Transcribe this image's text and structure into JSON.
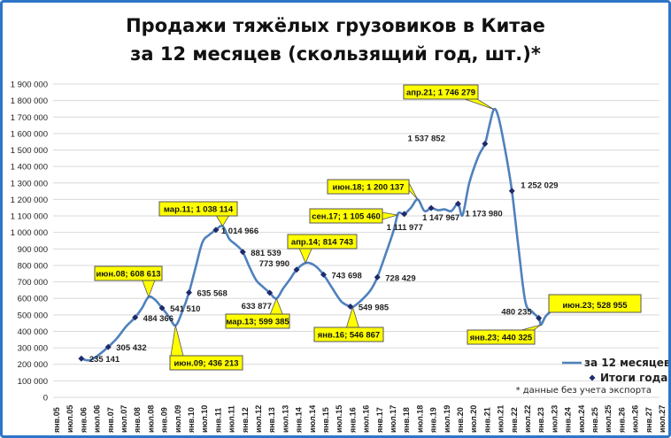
{
  "chart_data": {
    "type": "line",
    "title": [
      "Продажи тяжёлых грузовиков в Китае",
      "за 12 месяцев (скользящий год, шт.)*"
    ],
    "xlabel": "",
    "ylabel": "",
    "ylim": [
      0,
      1900000
    ],
    "yticks": [
      "0",
      "100 000",
      "200 000",
      "300 000",
      "400 000",
      "500 000",
      "600 000",
      "700 000",
      "800 000",
      "900 000",
      "1 000 000",
      "1 100 000",
      "1 200 000",
      "1 300 000",
      "1 400 000",
      "1 500 000",
      "1 600 000",
      "1 700 000",
      "1 800 000",
      "1 900 000"
    ],
    "xticks": [
      "янв.05",
      "июл.05",
      "янв.06",
      "июл.06",
      "янв.07",
      "июл.07",
      "янв.08",
      "июл.08",
      "янв.09",
      "июл.09",
      "янв.10",
      "июл.10",
      "янв.11",
      "июл.11",
      "янв.12",
      "июл.12",
      "янв.13",
      "июл.13",
      "янв.14",
      "июл.14",
      "янв.15",
      "июл.15",
      "янв.16",
      "июл.16",
      "янв.17",
      "июл.17",
      "янв.18",
      "июл.18",
      "янв.19",
      "июл.19",
      "янв.20",
      "июл.20",
      "янв.21",
      "июл.21",
      "янв.22",
      "июл.22",
      "янв.23",
      "июл.23",
      "янв.24",
      "июл.24",
      "янв.25",
      "июл.25",
      "янв.26",
      "июл.26",
      "янв.27",
      "июл.27"
    ],
    "grid": true,
    "legend_position": "bottom-right",
    "series": [
      {
        "name": "за 12 месяцев",
        "color": "#4f81bd",
        "points": [
          [
            "2005-12",
            235141
          ],
          [
            "2006-03",
            224000
          ],
          [
            "2006-06",
            240000
          ],
          [
            "2006-12",
            305432
          ],
          [
            "2007-04",
            360000
          ],
          [
            "2007-08",
            430000
          ],
          [
            "2007-12",
            484366
          ],
          [
            "2008-03",
            540000
          ],
          [
            "2008-06",
            608613
          ],
          [
            "2008-09",
            590000
          ],
          [
            "2008-12",
            541510
          ],
          [
            "2009-03",
            490000
          ],
          [
            "2009-06",
            436213
          ],
          [
            "2009-09",
            520000
          ],
          [
            "2009-12",
            635568
          ],
          [
            "2010-03",
            790000
          ],
          [
            "2010-06",
            940000
          ],
          [
            "2010-09",
            985000
          ],
          [
            "2010-12",
            1014966
          ],
          [
            "2011-03",
            1038114
          ],
          [
            "2011-06",
            960000
          ],
          [
            "2011-09",
            925000
          ],
          [
            "2011-12",
            881539
          ],
          [
            "2012-03",
            790000
          ],
          [
            "2012-06",
            710000
          ],
          [
            "2012-09",
            670000
          ],
          [
            "2012-12",
            633877
          ],
          [
            "2013-03",
            599385
          ],
          [
            "2013-06",
            660000
          ],
          [
            "2013-09",
            715000
          ],
          [
            "2013-12",
            773990
          ],
          [
            "2014-04",
            814743
          ],
          [
            "2014-08",
            800000
          ],
          [
            "2014-12",
            743698
          ],
          [
            "2015-04",
            660000
          ],
          [
            "2015-08",
            580000
          ],
          [
            "2015-12",
            549985
          ],
          [
            "2016-01",
            546867
          ],
          [
            "2016-05",
            590000
          ],
          [
            "2016-09",
            650000
          ],
          [
            "2016-12",
            728429
          ],
          [
            "2017-04",
            880000
          ],
          [
            "2017-07",
            1000000
          ],
          [
            "2017-09",
            1105460
          ],
          [
            "2017-10",
            1120000
          ],
          [
            "2017-12",
            1111977
          ],
          [
            "2018-03",
            1150000
          ],
          [
            "2018-06",
            1200137
          ],
          [
            "2018-09",
            1130000
          ],
          [
            "2018-12",
            1147967
          ],
          [
            "2019-03",
            1135000
          ],
          [
            "2019-06",
            1140000
          ],
          [
            "2019-09",
            1130000
          ],
          [
            "2019-12",
            1173980
          ],
          [
            "2020-02",
            1105000
          ],
          [
            "2020-05",
            1300000
          ],
          [
            "2020-09",
            1460000
          ],
          [
            "2020-12",
            1537852
          ],
          [
            "2021-02",
            1650000
          ],
          [
            "2021-04",
            1746279
          ],
          [
            "2021-06",
            1700000
          ],
          [
            "2021-09",
            1500000
          ],
          [
            "2021-12",
            1252029
          ],
          [
            "2022-03",
            900000
          ],
          [
            "2022-06",
            580000
          ],
          [
            "2022-09",
            520000
          ],
          [
            "2022-12",
            480235
          ],
          [
            "2023-01",
            440325
          ],
          [
            "2023-03",
            490000
          ],
          [
            "2023-06",
            528955
          ]
        ]
      },
      {
        "name": "Итоги года",
        "color": "#1f2a6b",
        "points": [
          [
            "2005-12",
            235141,
            "235 141"
          ],
          [
            "2006-12",
            305432,
            "305 432"
          ],
          [
            "2007-12",
            484366,
            "484 366"
          ],
          [
            "2008-12",
            541510,
            "541 510"
          ],
          [
            "2009-12",
            635568,
            "635 568"
          ],
          [
            "2010-12",
            1014966,
            "1 014 966"
          ],
          [
            "2011-12",
            881539,
            "881 539"
          ],
          [
            "2012-12",
            633877,
            "633 877"
          ],
          [
            "2013-12",
            773990,
            "773 990"
          ],
          [
            "2014-12",
            743698,
            "743 698"
          ],
          [
            "2015-12",
            549985,
            "549 985"
          ],
          [
            "2016-12",
            728429,
            "728 429"
          ],
          [
            "2017-12",
            1111977,
            "1 111 977"
          ],
          [
            "2018-12",
            1147967,
            "1 147 967"
          ],
          [
            "2019-12",
            1173980,
            "1 173 980"
          ],
          [
            "2020-12",
            1537852,
            "1 537 852"
          ],
          [
            "2021-12",
            1252029,
            "1 252 029"
          ],
          [
            "2022-12",
            480235,
            "480 235"
          ]
        ]
      }
    ],
    "annotations": [
      {
        "date": "2008-06",
        "value": 608613,
        "text": "июн.08; 608 613"
      },
      {
        "date": "2009-06",
        "value": 436213,
        "text": "июн.09; 436 213"
      },
      {
        "date": "2011-03",
        "value": 1038114,
        "text": "мар.11; 1 038 114"
      },
      {
        "date": "2013-03",
        "value": 599385,
        "text": "мар.13; 599 385"
      },
      {
        "date": "2014-04",
        "value": 814743,
        "text": "апр.14; 814 743"
      },
      {
        "date": "2016-01",
        "value": 546867,
        "text": "янв.16; 546 867"
      },
      {
        "date": "2017-09",
        "value": 1105460,
        "text": "сен.17; 1 105 460"
      },
      {
        "date": "2018-06",
        "value": 1200137,
        "text": "июн.18; 1 200 137"
      },
      {
        "date": "2021-04",
        "value": 1746279,
        "text": "апр.21; 1 746 279"
      },
      {
        "date": "2023-01",
        "value": 440325,
        "text": "янв.23; 440 325"
      },
      {
        "date": "2023-06",
        "value": 528955,
        "text": "июн.23; 528 955"
      }
    ],
    "callout_color": "#ffff00",
    "footnote": "* данные без учета экспорта"
  }
}
